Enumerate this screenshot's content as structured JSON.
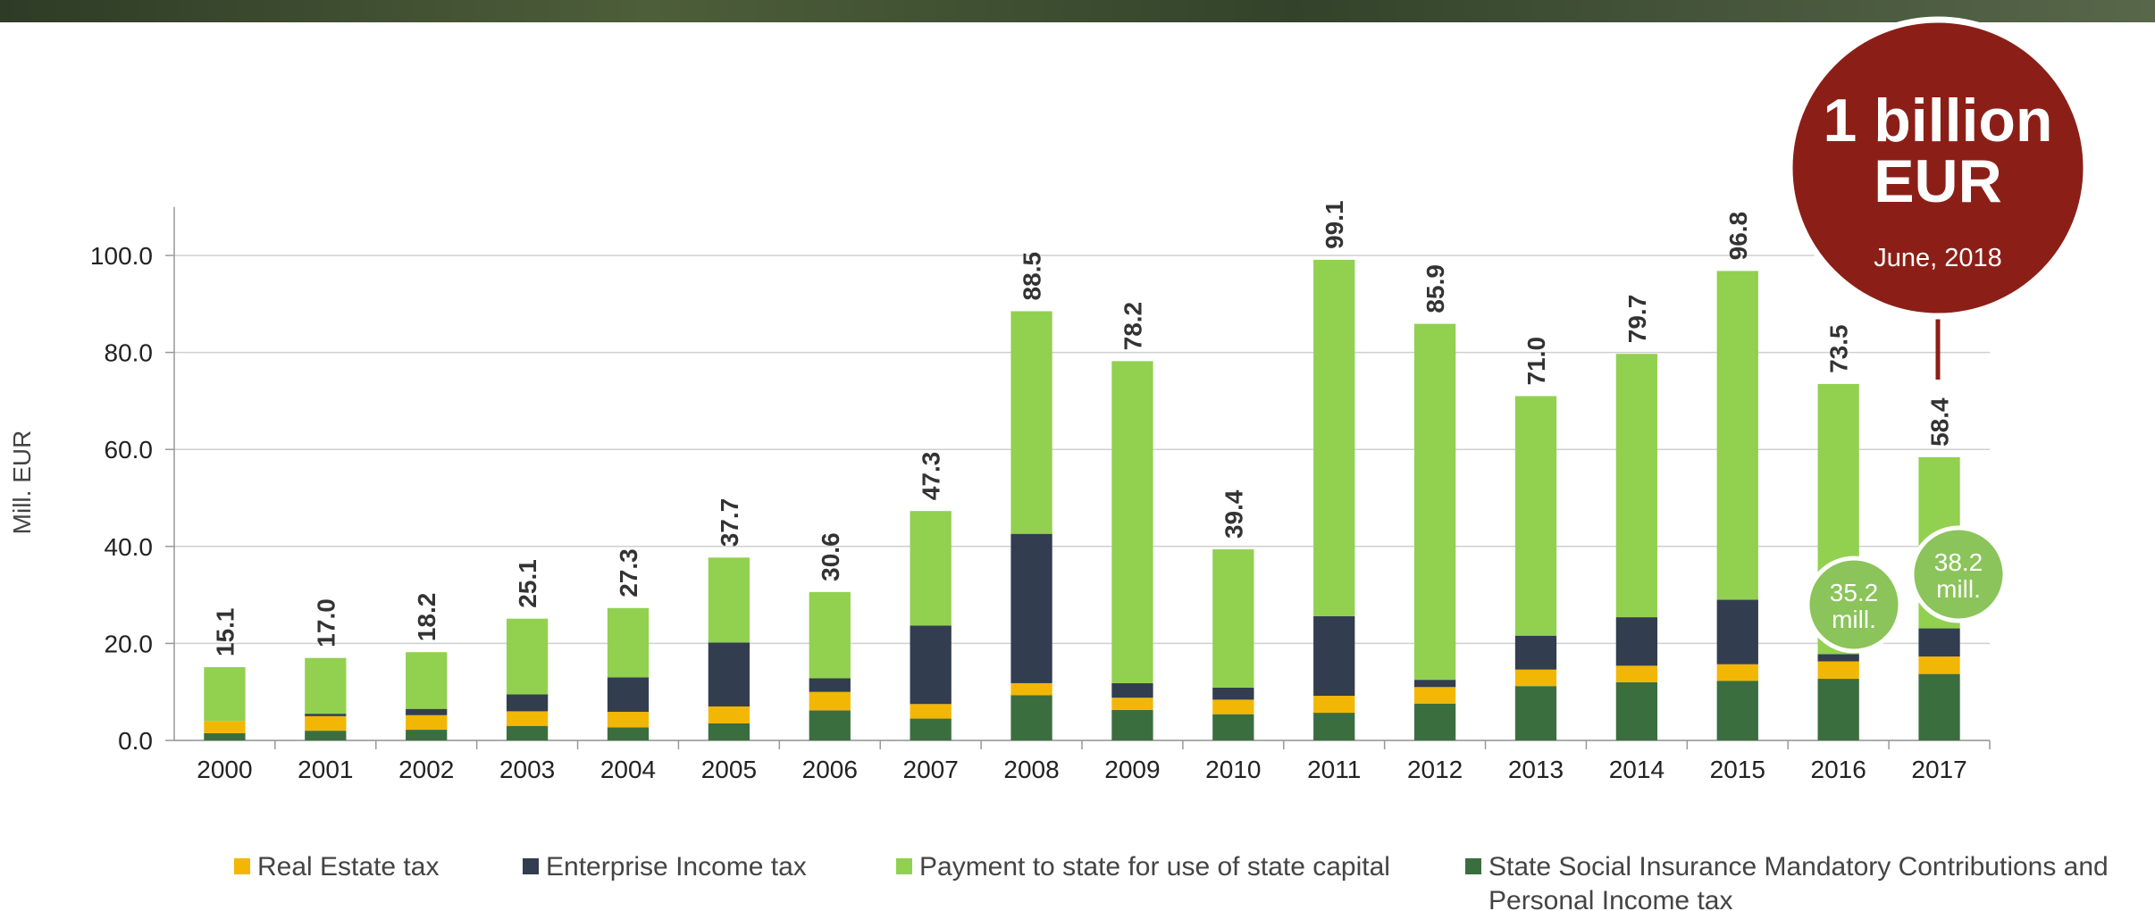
{
  "chart_data": {
    "type": "stacked-bar",
    "y_axis_label": "Mill. EUR",
    "categories": [
      "2000",
      "2001",
      "2002",
      "2003",
      "2004",
      "2005",
      "2006",
      "2007",
      "2008",
      "2009",
      "2010",
      "2011",
      "2012",
      "2013",
      "2014",
      "2015",
      "2016",
      "2017"
    ],
    "series": [
      {
        "name": "State Social Insurance Mandatory Contributions and Personal Income tax",
        "color": "#3b6e3f",
        "values": [
          1.5,
          2.0,
          2.2,
          3.0,
          2.7,
          3.5,
          6.2,
          4.5,
          9.3,
          6.3,
          5.4,
          5.7,
          7.6,
          11.2,
          12.0,
          12.3,
          12.7,
          13.7
        ]
      },
      {
        "name": "Real Estate tax",
        "color": "#f2b705",
        "values": [
          2.5,
          3.0,
          3.0,
          3.0,
          3.2,
          3.5,
          3.8,
          3.0,
          2.5,
          2.5,
          3.0,
          3.5,
          3.4,
          3.4,
          3.4,
          3.4,
          3.6,
          3.6
        ]
      },
      {
        "name": "Enterprise Income tax",
        "color": "#323e4f",
        "values": [
          0.0,
          0.5,
          1.3,
          3.5,
          7.1,
          13.2,
          2.8,
          16.2,
          30.8,
          3.0,
          2.5,
          16.4,
          1.5,
          7.0,
          10.0,
          13.3,
          1.5,
          5.8
        ]
      },
      {
        "name": "Payment to state for use of state capital",
        "color": "#92d050",
        "values": [
          11.1,
          11.5,
          11.7,
          15.6,
          14.3,
          17.5,
          17.8,
          23.6,
          45.9,
          66.4,
          28.5,
          73.5,
          73.4,
          49.4,
          54.3,
          67.8,
          55.7,
          35.3
        ]
      }
    ],
    "total_labels": [
      "15.1",
      "17.0",
      "18.2",
      "25.1",
      "27.3",
      "37.7",
      "30.6",
      "47.3",
      "88.5",
      "78.2",
      "39.4",
      "99.1",
      "85.9",
      "71.0",
      "79.7",
      "96.8",
      "73.5",
      "58.4"
    ],
    "ylim": [
      0,
      110
    ],
    "yticks": [
      {
        "value": 0,
        "label": "0.0"
      },
      {
        "value": 20,
        "label": "20.0"
      },
      {
        "value": 40,
        "label": "40.0"
      },
      {
        "value": 60,
        "label": "60.0"
      },
      {
        "value": 80,
        "label": "80.0"
      },
      {
        "value": 100,
        "label": "100.0"
      }
    ],
    "grid": true,
    "annotations": {
      "headline": "1 billion EUR",
      "headline_date": "June, 2018",
      "bubble_2016": "35.2 mill.",
      "bubble_2017": "38.2 mill."
    }
  }
}
